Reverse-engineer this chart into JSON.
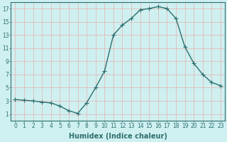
{
  "x": [
    0,
    1,
    2,
    3,
    4,
    5,
    6,
    7,
    8,
    9,
    10,
    11,
    12,
    13,
    14,
    15,
    16,
    17,
    18,
    19,
    20,
    21,
    22,
    23
  ],
  "y": [
    3.2,
    3.1,
    3.0,
    2.8,
    2.7,
    2.2,
    1.5,
    1.1,
    2.7,
    5.0,
    7.5,
    13.0,
    14.5,
    15.5,
    16.8,
    17.0,
    17.3,
    17.0,
    15.5,
    11.2,
    8.7,
    7.0,
    5.8,
    5.3
  ],
  "line_color": "#2d6e6e",
  "marker": "D",
  "marker_size": 2.0,
  "bg_color": "#cff0f0",
  "grid_color": "#e8b0b0",
  "xlabel": "Humidex (Indice chaleur)",
  "xlim": [
    -0.5,
    23.5
  ],
  "ylim": [
    0,
    18
  ],
  "xticks": [
    0,
    1,
    2,
    3,
    4,
    5,
    6,
    7,
    8,
    9,
    10,
    11,
    12,
    13,
    14,
    15,
    16,
    17,
    18,
    19,
    20,
    21,
    22,
    23
  ],
  "yticks": [
    1,
    3,
    5,
    7,
    9,
    11,
    13,
    15,
    17
  ],
  "tick_label_fontsize": 5.5,
  "xlabel_fontsize": 7.0,
  "line_width": 1.0
}
